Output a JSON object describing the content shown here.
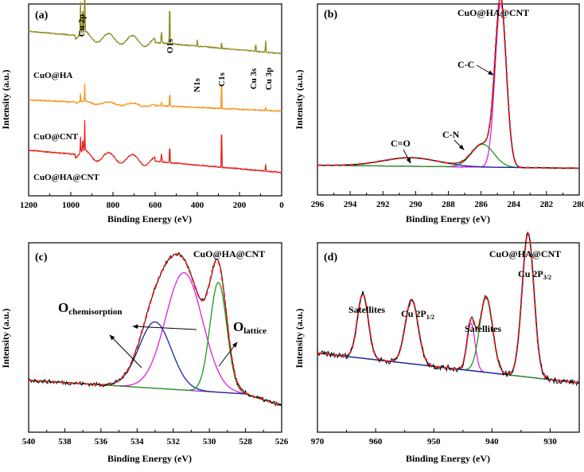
{
  "figure": {
    "panels": {
      "a": {
        "letter": "(a)",
        "xlabel": "Binding Energy (eV)",
        "ylabel": "Intensity (a.u.)"
      },
      "b": {
        "letter": "(b)",
        "xlabel": "Binding Energy (eV)",
        "ylabel": "Intensity (a.u.)",
        "sample": "CuO@HA@CNT"
      },
      "c": {
        "letter": "(c)",
        "xlabel": "Binding Energy (eV)",
        "ylabel": "Intensity (a.u.)",
        "sample": "CuO@HA@CNT"
      },
      "d": {
        "letter": "(d)",
        "xlabel": "Binding Energy (eV)",
        "ylabel": "Intensity (a.u.)",
        "sample": "CuO@HA@CNT"
      }
    }
  },
  "chart_data": [
    {
      "panel": "a",
      "type": "line",
      "title": "",
      "xlabel": "Binding Energy (eV)",
      "ylabel": "Intensity (a.u.)",
      "xlim": [
        1200,
        0
      ],
      "xticks": [
        "1200",
        "1000",
        "800",
        "600",
        "400",
        "200",
        "0"
      ],
      "series": [
        {
          "name": "CuO@HA",
          "color": "#8b8b1e",
          "offset": 0.7
        },
        {
          "name": "CuO@CNT",
          "color": "#f7941d",
          "offset": 0.4
        },
        {
          "name": "CuO@HA@CNT",
          "color": "#e8201a",
          "offset": 0.08
        }
      ],
      "peaks": [
        {
          "label": "Cu 2p",
          "x": 934
        },
        {
          "label": "O1s",
          "x": 531
        },
        {
          "label": "N1s",
          "x": 400
        },
        {
          "label": "C1s",
          "x": 285
        },
        {
          "label": "Cu 3s",
          "x": 123
        },
        {
          "label": "Cu 3p",
          "x": 76
        }
      ]
    },
    {
      "panel": "b",
      "type": "line",
      "title": "CuO@HA@CNT",
      "xlabel": "Binding Energy (eV)",
      "ylabel": "Intensity (a.u.)",
      "xlim": [
        296,
        280
      ],
      "xticks": [
        "296",
        "294",
        "292",
        "290",
        "288",
        "286",
        "284",
        "282",
        "280"
      ],
      "components": [
        {
          "label": "C-C",
          "center": 284.8,
          "fwhm": 0.8,
          "height": 0.86,
          "color": "#e020e0"
        },
        {
          "label": "C-N",
          "center": 285.9,
          "fwhm": 1.6,
          "height": 0.12,
          "color": "#1a9a1a"
        },
        {
          "label": "C=O",
          "center": 290.3,
          "fwhm": 4.0,
          "height": 0.045,
          "color": "#1a2aa0"
        }
      ],
      "annotations": [
        "C-C",
        "C-N",
        "C=O"
      ]
    },
    {
      "panel": "c",
      "type": "line",
      "title": "CuO@HA@CNT",
      "xlabel": "Binding Energy (eV)",
      "ylabel": "Intensity (a.u.)",
      "xlim": [
        540,
        526
      ],
      "xticks": [
        "540",
        "538",
        "536",
        "534",
        "532",
        "530",
        "528",
        "526"
      ],
      "components": [
        {
          "label": "O chemisorption",
          "center": 531.4,
          "fwhm": 2.4,
          "height": 0.62,
          "color": "#e020e0"
        },
        {
          "label": "O chemisorption",
          "center": 533.0,
          "fwhm": 2.1,
          "height": 0.35,
          "color": "#1a2aa0"
        },
        {
          "label": "O lattice",
          "center": 529.5,
          "fwhm": 1.1,
          "height": 0.58,
          "color": "#1a9a1a"
        }
      ],
      "annotations": [
        {
          "main": "O",
          "sub": "chemisorption"
        },
        {
          "main": "O",
          "sub": "lattice"
        }
      ]
    },
    {
      "panel": "d",
      "type": "line",
      "title": "CuO@HA@CNT",
      "xlabel": "Binding Energy (eV)",
      "ylabel": "Intensity (a.u.)",
      "xlim": [
        970,
        925
      ],
      "xticks": [
        "970",
        "960",
        "950",
        "940",
        "930"
      ],
      "components": [
        {
          "label": "Satellites",
          "center": 962.2,
          "fwhm": 2.2,
          "height": 0.34,
          "color": "#1a2aa0"
        },
        {
          "label": "Cu 2P1/2",
          "center": 953.8,
          "fwhm": 2.6,
          "height": 0.34,
          "color": "#1a2aa0"
        },
        {
          "label": "Satellites",
          "center": 943.6,
          "fwhm": 1.6,
          "height": 0.25,
          "color": "#e020e0"
        },
        {
          "label": "Satellites",
          "center": 941.0,
          "fwhm": 2.6,
          "height": 0.4,
          "color": "#1a9a1a"
        },
        {
          "label": "Cu 2P3/2",
          "center": 933.8,
          "fwhm": 2.4,
          "height": 0.76,
          "color": "#1a2aa0"
        }
      ],
      "annotations": [
        {
          "label": "Satellites"
        },
        {
          "main": "Cu 2P",
          "sub": "1/2"
        },
        {
          "label": "Satellites"
        },
        {
          "main": "Cu 2P",
          "sub": "3/2"
        }
      ]
    }
  ]
}
